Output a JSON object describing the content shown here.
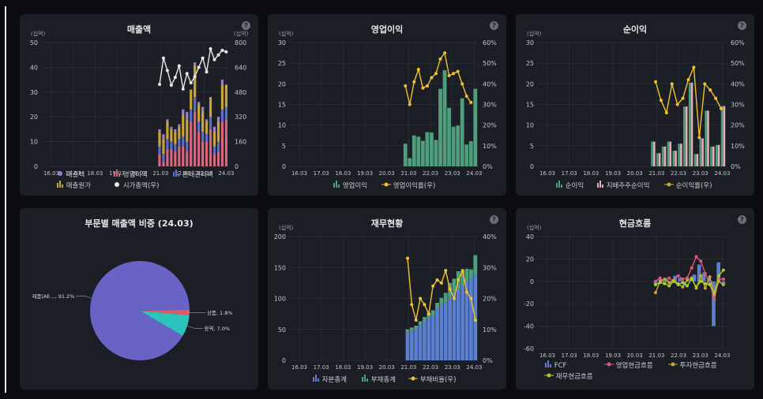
{
  "colors": {
    "revenue": "#9b7fd4",
    "op_income": "#d9667f",
    "sga": "#5b6ec8",
    "cogs": "#c8a53a",
    "mktcap": "#e8e8e8",
    "op_bar": "#4f9e7c",
    "line_yellow": "#f2c12e",
    "ni_green": "#4f9e7c",
    "ni_pink": "#e6aeb8",
    "equity": "#5b7fd0",
    "liab": "#4f9e7c",
    "fcf": "#5b7fd0",
    "ocf": "#e0567a",
    "icf": "#c8a53a",
    "fincf": "#a5d12a",
    "pie_main": "#6a63c6",
    "pie_prod": "#e15a67",
    "pie_svc": "#2bc3bc"
  },
  "help_icon": "question-icon",
  "x_ticks": [
    "16.03",
    "17.03",
    "18.03",
    "19.03",
    "20.03",
    "21.03",
    "22.03",
    "23.03",
    "24.03"
  ],
  "panels": {
    "sales": {
      "title": "매출액",
      "unit_left": "(십억)",
      "unit_right": "(십억)",
      "legend": [
        "매출액",
        "영업이익",
        "판매관리비",
        "매출원가",
        "시가총액(우)"
      ]
    },
    "op": {
      "title": "영업이익",
      "unit_left": "(십억)",
      "legend": [
        "영업이익",
        "영업이익률(우)"
      ]
    },
    "ni": {
      "title": "순이익",
      "unit_left": "(십억)",
      "legend": [
        "순이익",
        "지배주주순이익",
        "순이익률(우)"
      ]
    },
    "pie": {
      "title": "부문별 매출액 비중 (24.03)"
    },
    "fin": {
      "title": "재무현황",
      "unit_left": "(십억)",
      "legend": [
        "자본총계",
        "부채총계",
        "부채비율(우)"
      ]
    },
    "cf": {
      "title": "현금흐름",
      "unit_left": "(십억)",
      "legend": [
        "FCF",
        "영업현금흐름",
        "투자현금흐름",
        "재무현금흐름"
      ]
    }
  },
  "chart_data": [
    {
      "type": "bar",
      "title": "매출액",
      "ylim": [
        0,
        50
      ],
      "y2lim": [
        0,
        800
      ],
      "y_ticks": [
        0,
        10,
        20,
        30,
        40,
        50
      ],
      "y2_ticks": [
        0,
        160,
        320,
        480,
        640,
        800
      ],
      "series": [
        {
          "name": "매출액",
          "values": [
            15,
            13,
            19,
            16,
            15,
            17,
            23,
            22,
            26,
            42,
            26,
            24,
            19,
            28,
            16,
            20,
            35,
            33
          ]
        },
        {
          "name": "영업이익",
          "values": [
            5,
            2,
            7,
            7,
            6,
            8,
            8,
            6,
            18,
            22,
            14,
            10,
            10,
            15,
            5,
            6,
            18,
            19
          ]
        },
        {
          "name": "판매관리비",
          "values": [
            3,
            3,
            4,
            3,
            3,
            3,
            4,
            4,
            5,
            6,
            4,
            4,
            3,
            5,
            3,
            4,
            5,
            5
          ]
        },
        {
          "name": "매출원가",
          "values": [
            6,
            6,
            7,
            5,
            5,
            5,
            9,
            9,
            8,
            13,
            7,
            8,
            5,
            8,
            6,
            8,
            10,
            9
          ]
        },
        {
          "name": "시가총액(우)",
          "values": [
            530,
            700,
            620,
            525,
            575,
            650,
            500,
            600,
            540,
            580,
            640,
            700,
            610,
            760,
            690,
            720,
            750,
            740
          ]
        }
      ]
    },
    {
      "type": "bar",
      "title": "영업이익",
      "ylim": [
        0,
        30
      ],
      "y2lim": [
        0,
        0.6
      ],
      "y_ticks": [
        0,
        5,
        10,
        15,
        20,
        25,
        30
      ],
      "y2_ticks": [
        "0%",
        "10%",
        "20%",
        "30%",
        "40%",
        "50%",
        "60%"
      ],
      "series": [
        {
          "name": "영업이익",
          "values": [
            5.5,
            2,
            7.5,
            7.2,
            6.2,
            8.3,
            8.2,
            6.4,
            18.8,
            23.3,
            14.2,
            9.6,
            9.9,
            16.5,
            5.3,
            6.1,
            18.8
          ]
        },
        {
          "name": "영업이익률(우)",
          "values": [
            0.39,
            0.3,
            0.41,
            0.47,
            0.38,
            0.39,
            0.43,
            0.45,
            0.52,
            0.55,
            0.44,
            0.45,
            0.46,
            0.4,
            0.34,
            0.31
          ]
        }
      ]
    },
    {
      "type": "bar",
      "title": "순이익",
      "ylim": [
        0,
        30
      ],
      "y2lim": [
        0,
        0.6
      ],
      "y_ticks": [
        0,
        5,
        10,
        15,
        20,
        25,
        30
      ],
      "y2_ticks": [
        "0%",
        "10%",
        "20%",
        "30%",
        "40%",
        "50%",
        "60%"
      ],
      "series": [
        {
          "name": "순이익",
          "values": [
            6,
            3.2,
            4.8,
            6,
            3.8,
            5.5,
            14.5,
            20.3,
            3,
            6.8,
            13.5,
            4.8,
            5.2,
            14.6
          ]
        },
        {
          "name": "지배주주순이익",
          "values": [
            6,
            3.2,
            4.8,
            6,
            3.8,
            5.5,
            14.5,
            20.3,
            3,
            6.8,
            13.5,
            4.8,
            5.2,
            14.6
          ]
        },
        {
          "name": "순이익률(우)",
          "values": [
            0.41,
            0.32,
            0.26,
            0.4,
            0.3,
            0.33,
            0.42,
            0.48,
            0.14,
            0.4,
            0.37,
            0.33,
            0.28
          ]
        }
      ]
    },
    {
      "type": "pie",
      "title": "부문별 매출액 비중 (24.03)",
      "slices": [
        {
          "label": "제품(AE..., 91.2%",
          "value": 91.2
        },
        {
          "label": "상품, 1.8%",
          "value": 1.8
        },
        {
          "label": "용역, 7.0%",
          "value": 7.0
        }
      ]
    },
    {
      "type": "bar",
      "title": "재무현황",
      "ylim": [
        0,
        200
      ],
      "y2lim": [
        0,
        0.4
      ],
      "y_ticks": [
        0,
        50,
        100,
        150,
        200
      ],
      "y2_ticks": [
        "0%",
        "10%",
        "20%",
        "30%",
        "40%"
      ],
      "series": [
        {
          "name": "자본총계",
          "values": [
            45,
            48,
            50,
            57,
            63,
            69,
            72,
            83,
            90,
            94,
            102,
            110,
            115,
            121,
            127,
            132,
            138
          ]
        },
        {
          "name": "부채총계",
          "values": [
            5,
            5,
            6,
            6,
            7,
            8,
            9,
            10,
            11,
            15,
            23,
            22,
            29,
            23,
            21,
            15,
            32
          ]
        },
        {
          "name": "부채비율(우)",
          "values": [
            0.33,
            0.18,
            0.13,
            0.2,
            0.18,
            0.15,
            0.24,
            0.26,
            0.25,
            0.29,
            0.23,
            0.2,
            0.26,
            0.29,
            0.22,
            0.2,
            0.13
          ]
        }
      ]
    },
    {
      "type": "bar",
      "title": "현금흐름",
      "ylim": [
        -60,
        40
      ],
      "y_ticks": [
        -60,
        -40,
        -20,
        0,
        20,
        40
      ],
      "series": [
        {
          "name": "FCF",
          "values": [
            -3,
            2,
            3,
            -2,
            5,
            3,
            -4,
            1,
            6,
            15,
            8,
            3,
            -40,
            17,
            -3
          ]
        },
        {
          "name": "영업현금흐름",
          "values": [
            0,
            3,
            -2,
            3,
            0,
            5,
            2,
            3,
            12,
            22,
            18,
            7,
            -2,
            -16,
            2,
            2
          ]
        },
        {
          "name": "투자현금흐름",
          "values": [
            -10,
            0,
            2,
            -1,
            1,
            -2,
            -5,
            1,
            3,
            -6,
            5,
            -6,
            4,
            -12,
            0,
            -3
          ]
        },
        {
          "name": "재무현금흐름",
          "values": [
            -3,
            -1,
            -2,
            -4,
            0,
            -3,
            -1,
            -4,
            2,
            -5,
            0,
            -2,
            -3,
            -10,
            5,
            10
          ]
        }
      ]
    }
  ]
}
